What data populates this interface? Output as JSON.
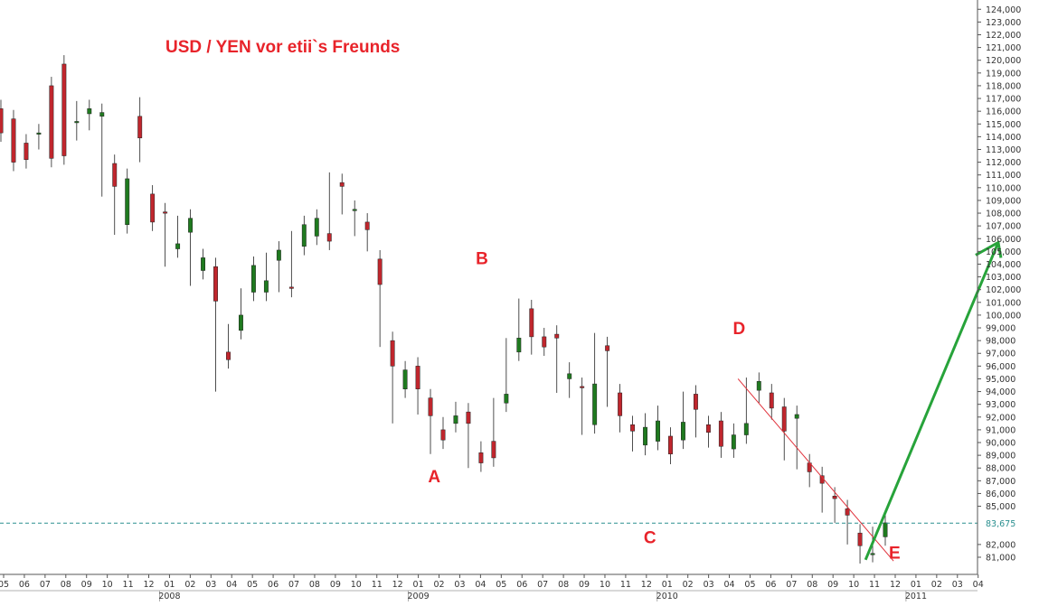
{
  "chart_data": {
    "type": "candlestick",
    "title": "USD  /  YEN vor etii`s  Freunds",
    "y_ticks": [
      81000,
      82000,
      85000,
      86000,
      87000,
      88000,
      89000,
      90000,
      91000,
      92000,
      93000,
      94000,
      95000,
      96000,
      97000,
      98000,
      99000,
      100000,
      101000,
      102000,
      103000,
      104000,
      105000,
      106000,
      107000,
      108000,
      109000,
      110000,
      111000,
      112000,
      113000,
      114000,
      115000,
      116000,
      117000,
      118000,
      119000,
      120000,
      121000,
      122000,
      123000,
      124000
    ],
    "ylim": [
      80400,
      124300
    ],
    "current_value": 83675,
    "current_label": "83,675",
    "x_labels": [
      "05",
      "06",
      "07",
      "08",
      "09",
      "10",
      "11",
      "12",
      "01",
      "02",
      "03",
      "04",
      "05",
      "06",
      "07",
      "08",
      "09",
      "10",
      "11",
      "12",
      "01",
      "02",
      "03",
      "04",
      "05",
      "06",
      "07",
      "08",
      "09",
      "10",
      "11",
      "12",
      "01",
      "02",
      "03",
      "04",
      "05",
      "06",
      "07",
      "08",
      "09",
      "10",
      "11",
      "12",
      "01",
      "02",
      "03",
      "04"
    ],
    "years": [
      {
        "label": "2008",
        "index": 8
      },
      {
        "label": "2009",
        "index": 20
      },
      {
        "label": "2010",
        "index": 32
      },
      {
        "label": "2011",
        "index": 44
      }
    ],
    "waves": [
      {
        "label": "A",
        "month": 20.9,
        "value": 86900
      },
      {
        "label": "B",
        "month": 23.2,
        "value": 104000
      },
      {
        "label": "C",
        "month": 31.3,
        "value": 82100
      },
      {
        "label": "D",
        "month": 35.6,
        "value": 98500
      },
      {
        "label": "E",
        "month": 43.1,
        "value": 80900
      }
    ],
    "trendline": {
      "from": {
        "month": 35.55,
        "value": 95000
      },
      "to": {
        "month": 43.05,
        "value": 80700
      },
      "color": "#e0303a"
    },
    "projection": {
      "from": {
        "month": 41.7,
        "value": 80800
      },
      "to": {
        "month": 48.1,
        "value": 105700
      },
      "color": "#27a33a"
    },
    "colors": {
      "up": "#1f7a1f",
      "down": "#c0262d",
      "grid": "#d8d8d8",
      "current_line": "#2a8f8f"
    },
    "candles": [
      [
        122,
        116.2,
        114.3,
        115.5,
        115.6
      ],
      [
        122,
        115.4,
        112,
        115.3,
        113.5
      ],
      [
        122,
        113.5,
        112.2,
        113.3,
        113
      ],
      [
        122.5,
        114.3,
        114.3,
        114,
        113.7
      ],
      [
        122,
        118,
        112.3,
        116.6,
        112.6
      ],
      [
        122.2,
        119.7,
        112.5,
        116.7,
        119.1
      ],
      [
        122,
        115.1,
        115.2,
        116.1,
        114.4
      ],
      [
        122,
        115.8,
        116.2,
        115.2,
        115.7
      ],
      [
        122,
        115.6,
        115.9,
        110,
        111.2
      ],
      [
        122,
        111.9,
        110.1,
        108.5,
        107
      ],
      [
        122,
        107.1,
        110.7,
        107.5,
        110.8
      ],
      [
        122,
        115.6,
        113.9,
        116.4,
        112.7
      ],
      [
        122.5,
        109.5,
        107.3,
        108.6,
        108.7
      ],
      [
        122,
        108.1,
        108,
        104.8,
        104.5
      ],
      [
        122,
        105.2,
        105.6,
        106.3,
        107.1
      ],
      [
        122,
        106.5,
        107.6,
        104.2,
        103
      ],
      [
        122,
        103.5,
        104.5,
        104.2,
        103.8
      ],
      [
        122,
        103.8,
        101.1,
        97.4,
        94.7
      ],
      [
        122,
        97.1,
        96.5,
        98.6,
        97.5
      ],
      [
        122,
        98.8,
        100,
        101.4,
        100.1
      ],
      [
        122,
        101.8,
        103.9,
        103.8,
        102.3
      ],
      [
        122,
        101.8,
        102.7,
        102.8,
        104.2
      ],
      [
        122,
        104.3,
        105.1,
        102.5,
        103.4
      ],
      [
        122,
        102.2,
        102.1,
        105.8,
        105.9
      ],
      [
        122,
        105.4,
        107.1,
        106.9,
        106.4
      ],
      [
        122,
        106.2,
        107.6,
        106.6,
        106.7
      ],
      [
        122,
        106.4,
        105.8,
        109.1,
        110.5
      ],
      [
        122,
        110.4,
        110.1,
        109.6,
        108.6
      ],
      [
        122,
        108.3,
        108.3,
        107.2,
        106.9
      ],
      [
        122,
        107.3,
        106.7,
        106.4,
        105.7
      ],
      [
        122,
        104.4,
        102.4,
        100.1,
        98.2
      ],
      [
        122,
        98,
        96,
        92.5,
        92.2
      ],
      [
        122,
        94.2,
        95.7,
        95.6,
        94.5
      ],
      [
        122.3,
        96,
        94.2,
        93.4,
        92.9
      ],
      [
        122.3,
        93.5,
        92.1,
        91.1,
        89.8
      ],
      [
        122,
        91,
        90.2,
        90.6,
        91.3
      ],
      [
        122,
        91.5,
        92.1,
        92.5,
        91.8
      ],
      [
        122,
        92.4,
        91.5,
        90.7,
        88.7
      ],
      [
        122,
        89.2,
        88.4,
        89.4,
        89.4
      ],
      [
        122,
        90.1,
        88.8,
        91.2,
        92.8
      ],
      [
        122.5,
        93.1,
        93.8,
        97.3,
        97.5
      ],
      [
        122,
        97.1,
        98.2,
        99.1,
        100.6
      ],
      [
        122,
        100.5,
        98.3,
        97.6,
        98.3
      ],
      [
        122.5,
        98.3,
        97.5,
        97.7,
        98
      ],
      [
        122,
        98.5,
        98.2,
        96,
        94.6
      ],
      [
        122.1,
        95,
        95.4,
        95.6,
        94.2
      ],
      [
        122,
        94.4,
        94.3,
        93,
        91.3
      ],
      [
        122,
        91.4,
        94.6,
        95.3,
        97.9
      ],
      [
        122,
        97.6,
        97.2,
        93.9,
        93.5
      ],
      [
        122,
        93.9,
        92.1,
        92.2,
        91.5
      ],
      [
        122,
        91.4,
        90.9,
        91.2,
        90
      ],
      [
        122,
        89.8,
        91.2,
        91.6,
        89.7
      ],
      [
        122,
        90.1,
        91.7,
        92.2,
        90.3
      ],
      [
        122,
        90.5,
        89.1,
        89,
        90.4
      ],
      [
        122,
        90.2,
        91.6,
        92.1,
        93.3
      ],
      [
        122,
        93.8,
        92.6,
        91.1,
        91.7
      ],
      [
        122,
        91.4,
        90.8,
        90.3,
        91.2
      ],
      [
        122,
        91.7,
        89.7,
        89.5,
        89.5
      ],
      [
        122,
        89.5,
        90.6,
        90.8,
        90.5
      ],
      [
        122,
        90.6,
        91.5,
        93.6,
        94.4
      ],
      [
        122,
        94.1,
        94.8,
        94.1,
        93.8
      ],
      [
        122,
        93.9,
        92.7,
        93.4,
        92.5
      ],
      [
        122,
        92.8,
        90.9,
        89.3,
        91.7
      ],
      [
        122,
        91.9,
        92.2,
        90.4,
        88.6
      ],
      [
        122,
        88.4,
        87.7,
        87.6,
        87.2
      ],
      [
        122,
        87.4,
        86.8,
        85.2,
        85.7
      ],
      [
        122,
        85.8,
        85.6,
        84.4,
        84.4
      ],
      [
        122,
        84.8,
        84.3,
        83.6,
        82.7
      ],
      [
        122,
        82.9,
        81.9,
        81.4,
        81.2
      ],
      [
        122,
        81.3,
        81.3,
        81.6,
        82.7
      ],
      [
        122,
        82.6,
        83.7,
        84,
        83.7
      ]
    ]
  },
  "watermark": ""
}
